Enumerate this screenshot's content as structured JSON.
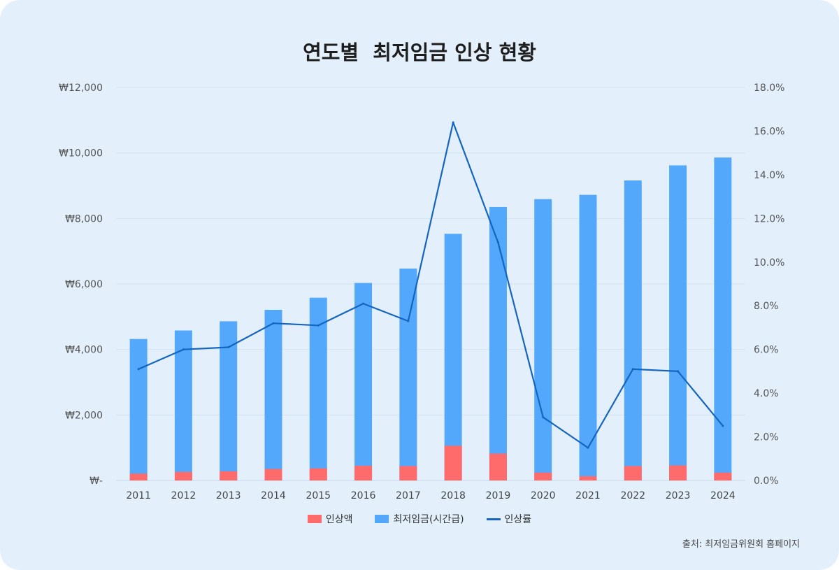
{
  "title": "연도별  최저임금 인상 현황",
  "source": "출처: 최저임금위원회 홈페이지",
  "colors": {
    "increase_amount": "#ff6b6b",
    "min_wage": "#53a8fb",
    "increase_rate": "#1565c0",
    "background": "#e3f0fc"
  },
  "chart_data": {
    "type": "bar",
    "categories": [
      "2011",
      "2012",
      "2013",
      "2014",
      "2015",
      "2016",
      "2017",
      "2018",
      "2019",
      "2020",
      "2021",
      "2022",
      "2023",
      "2024"
    ],
    "series": [
      {
        "name": "인상액",
        "kind": "bar",
        "axis": "left",
        "values": [
          210,
          260,
          280,
          350,
          370,
          450,
          440,
          1060,
          820,
          240,
          130,
          440,
          460,
          240
        ]
      },
      {
        "name": "최저임금(시간급)",
        "kind": "bar",
        "axis": "left",
        "values": [
          4320,
          4580,
          4860,
          5210,
          5580,
          6030,
          6470,
          7530,
          8350,
          8590,
          8720,
          9160,
          9620,
          9860
        ]
      },
      {
        "name": "인상률",
        "kind": "line",
        "axis": "right",
        "values": [
          5.1,
          6.0,
          6.1,
          7.2,
          7.1,
          8.1,
          7.3,
          16.4,
          10.9,
          2.9,
          1.5,
          5.1,
          5.0,
          2.5
        ]
      }
    ],
    "y_left": {
      "ylim": [
        0,
        12000
      ],
      "ticks": [
        "₩-",
        "₩2,000",
        "₩4,000",
        "₩6,000",
        "₩8,000",
        "₩10,000",
        "₩12,000"
      ]
    },
    "y_right": {
      "ylim": [
        0,
        18
      ],
      "ticks": [
        "0.0%",
        "2.0%",
        "4.0%",
        "6.0%",
        "8.0%",
        "10.0%",
        "12.0%",
        "14.0%",
        "16.0%",
        "18.0%"
      ]
    },
    "grid": true,
    "legend": "bottom"
  }
}
